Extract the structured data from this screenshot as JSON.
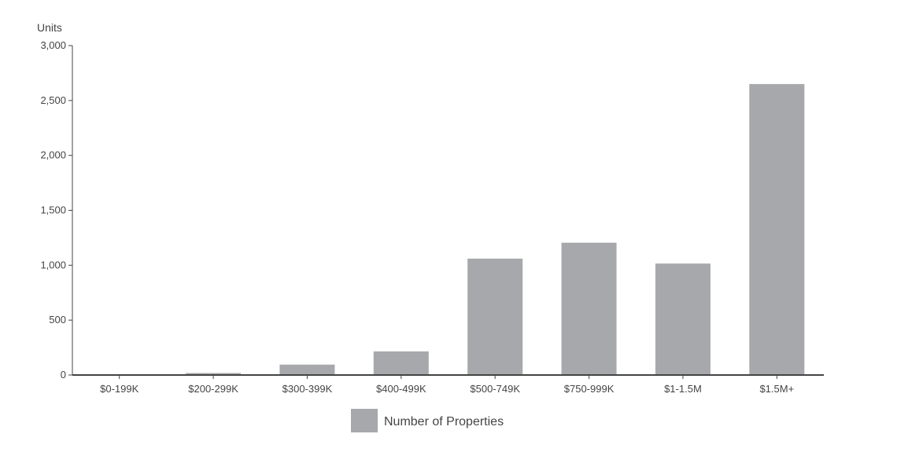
{
  "chart_data": {
    "type": "bar",
    "ylabel": "Units",
    "categories": [
      "$0-199K",
      "$200-299K",
      "$300-399K",
      "$400-499K",
      "$500-749K",
      "$750-999K",
      "$1-1.5M",
      "$1.5M+"
    ],
    "series": [
      {
        "name": "Number of Properties",
        "values": [
          5,
          18,
          95,
          215,
          1060,
          1205,
          1015,
          2650
        ]
      }
    ],
    "ylim": [
      0,
      3000
    ],
    "yticks": [
      0,
      500,
      1000,
      1500,
      2000,
      2500,
      3000
    ],
    "ytick_labels": [
      "0",
      "500",
      "1,000",
      "1,500",
      "2,000",
      "2,500",
      "3,000"
    ],
    "bar_color": "#a7a8ab",
    "axis_color": "#444444",
    "grid": false,
    "legend_position": "bottom-center"
  }
}
